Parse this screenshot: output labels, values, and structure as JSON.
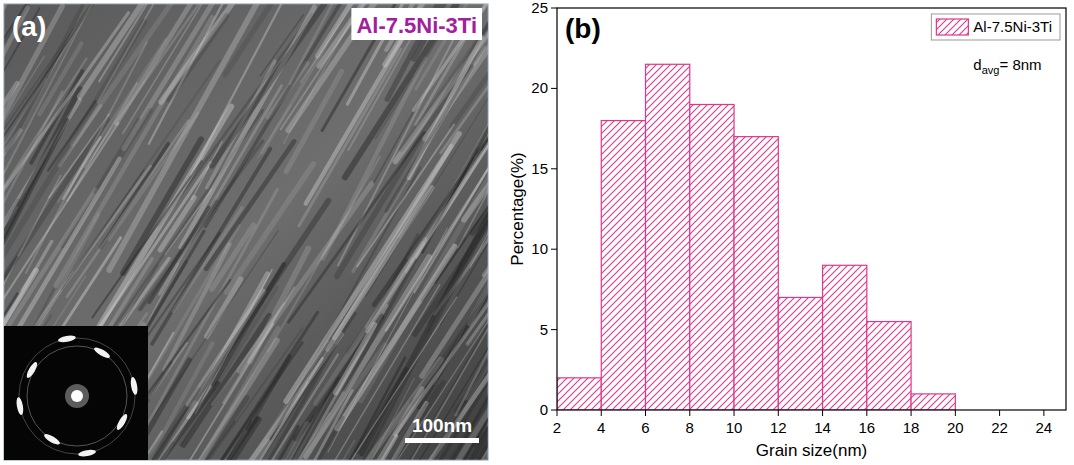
{
  "micrograph": {
    "panel_label": "(a)",
    "label": "Al-7.5Ni-3Ti",
    "scale_bar": "100nm"
  },
  "chart_data": {
    "type": "histogram",
    "panel_label": "(b)",
    "x_label": "Grain size(nm)",
    "y_label": "Percentage(%)",
    "bins": [
      2,
      4,
      6,
      8,
      10,
      12,
      14,
      16,
      18,
      20
    ],
    "series": [
      {
        "name": "Al-7.5Ni-3Ti",
        "color": "#e0368a",
        "values": [
          2,
          18,
          21.5,
          19,
          17,
          7,
          9,
          5.5,
          1
        ]
      }
    ],
    "annotation": {
      "base": "d",
      "sub": "avg",
      "rest": "= 8nm"
    },
    "xlim": [
      2,
      25
    ],
    "xticks": [
      2,
      4,
      6,
      8,
      10,
      12,
      14,
      16,
      18,
      20,
      22,
      24
    ],
    "ylim": [
      0,
      25
    ],
    "yticks": [
      0,
      5,
      10,
      15,
      20,
      25
    ],
    "legend": "top-right",
    "grid": false
  }
}
